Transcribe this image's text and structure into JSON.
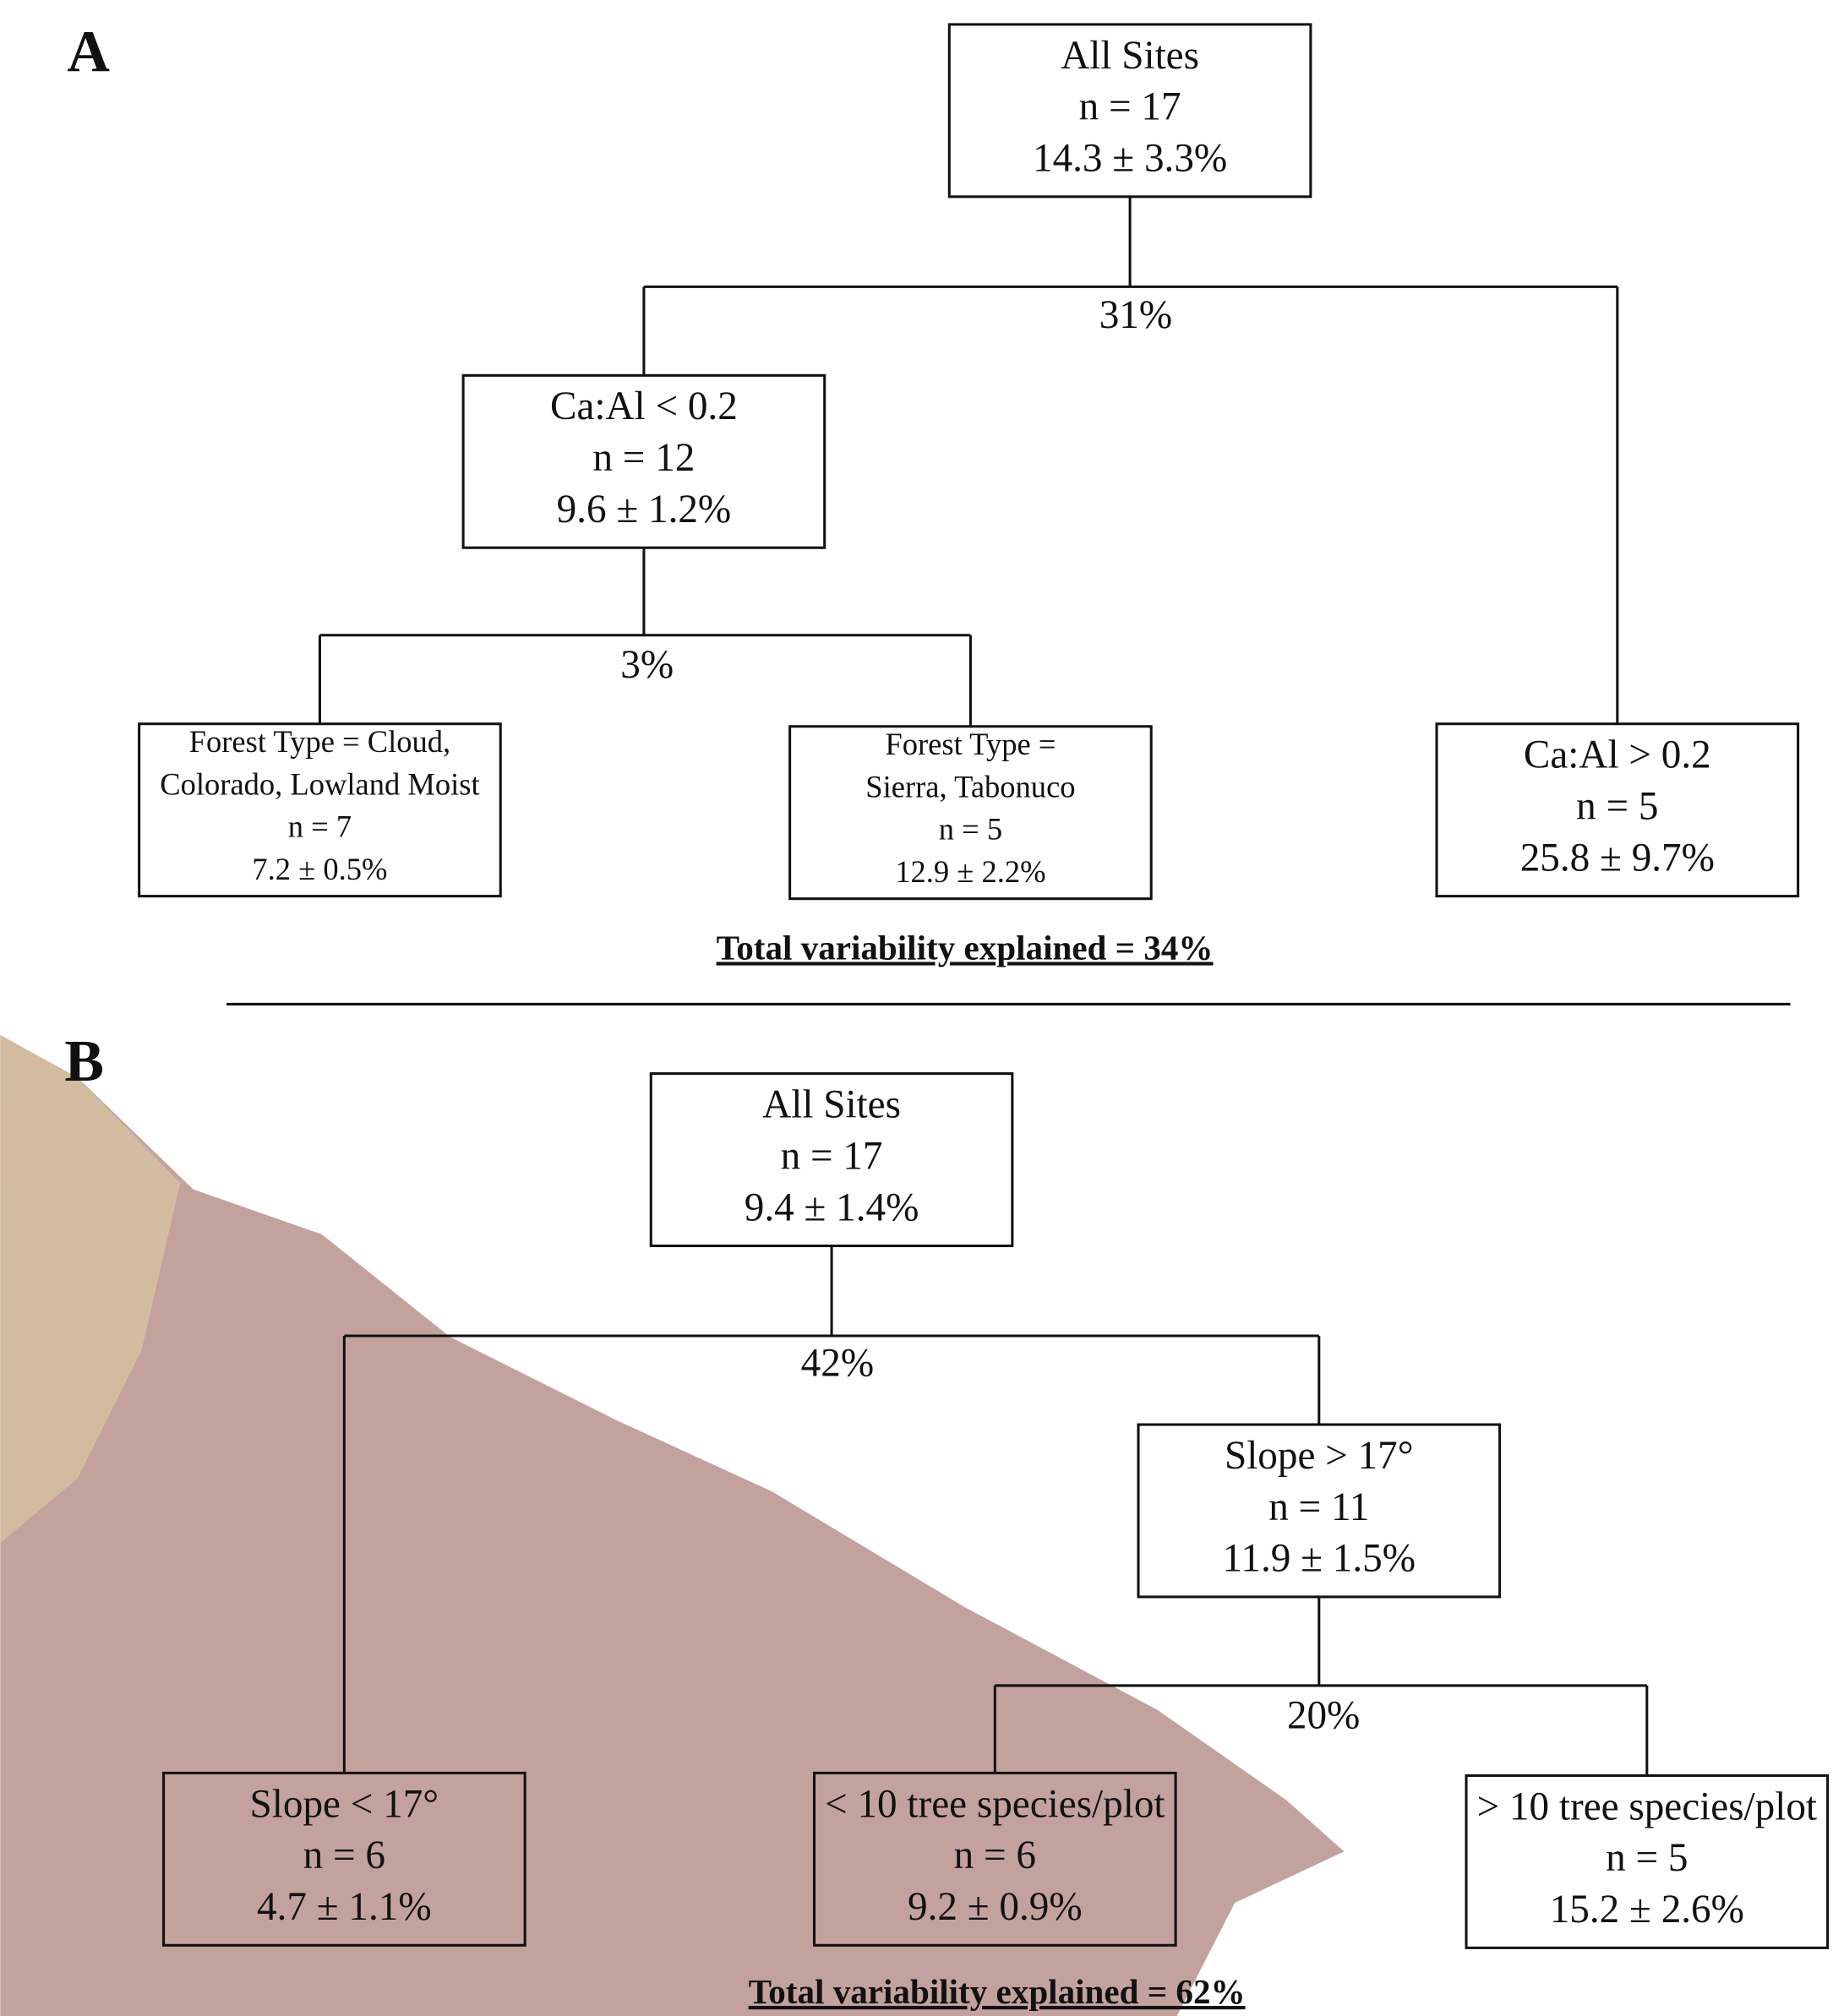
{
  "panels": [
    {
      "label": "A",
      "nodes": [
        {
          "lines": [
            "All Sites",
            "n = 17",
            "14.3 ± 3.3%"
          ]
        },
        {
          "lines": [
            "Ca:Al < 0.2",
            "n = 12",
            "9.6 ± 1.2%"
          ]
        },
        {
          "lines": [
            "Forest Type = Cloud,",
            "Colorado, Lowland Moist",
            "n = 7",
            "7.2 ± 0.5%"
          ]
        },
        {
          "lines": [
            "Forest Type =",
            "Sierra, Tabonuco",
            "n = 5",
            "12.9 ± 2.2%"
          ]
        },
        {
          "lines": [
            "Ca:Al > 0.2",
            "n = 5",
            "25.8 ± 9.7%"
          ]
        }
      ],
      "splits": [
        "31%",
        "3%"
      ],
      "total": "Total variability explained = 34%"
    },
    {
      "label": "B",
      "nodes": [
        {
          "lines": [
            "All Sites",
            "n = 17",
            "9.4 ± 1.4%"
          ]
        },
        {
          "lines": [
            "Slope > 17°",
            "n = 11",
            "11.9 ± 1.5%"
          ]
        },
        {
          "lines": [
            "Slope < 17°",
            "n = 6",
            "4.7 ± 1.1%"
          ]
        },
        {
          "lines": [
            "< 10 tree species/plot",
            "n = 6",
            "9.2 ± 0.9%"
          ]
        },
        {
          "lines": [
            "> 10 tree species/plot",
            "n = 5",
            "15.2 ± 2.6%"
          ]
        }
      ],
      "splits": [
        "42%",
        "20%"
      ],
      "total": "Total variability explained = 62%"
    }
  ]
}
